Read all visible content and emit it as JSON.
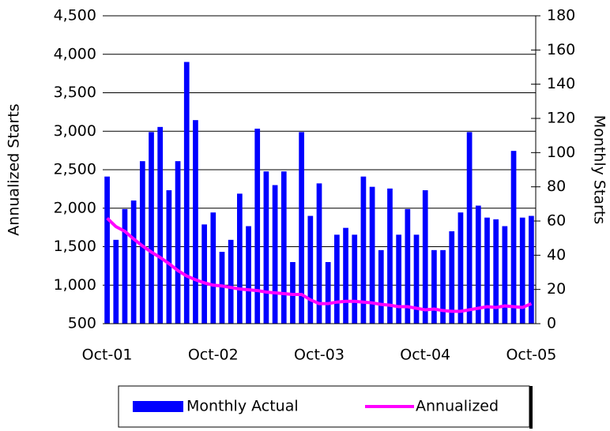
{
  "chart_data": {
    "type": "bar-line",
    "y_label": "Annualized Starts",
    "y2_label": "Monthly Starts",
    "categories": [
      "Oct-01",
      null,
      null,
      null,
      null,
      null,
      null,
      null,
      null,
      null,
      null,
      null,
      "Oct-02",
      null,
      null,
      null,
      null,
      null,
      null,
      null,
      null,
      null,
      null,
      null,
      "Oct-03",
      null,
      null,
      null,
      null,
      null,
      null,
      null,
      null,
      null,
      null,
      null,
      "Oct-04",
      null,
      null,
      null,
      null,
      null,
      null,
      null,
      null,
      null,
      null,
      null,
      "Oct-05"
    ],
    "series": [
      {
        "name": "Monthly Actual",
        "color": "#0000ff",
        "axis": "y2",
        "kind": "bar",
        "values": [
          86,
          49,
          67,
          72,
          95,
          112,
          115,
          78,
          95,
          153,
          119,
          58,
          65,
          42,
          49,
          76,
          57,
          114,
          89,
          81,
          89,
          36,
          112,
          63,
          82,
          36,
          52,
          56,
          52,
          86,
          80,
          43,
          79,
          52,
          67,
          52,
          78,
          43,
          43,
          54,
          65,
          112,
          69,
          62,
          61,
          57,
          101,
          62,
          63
        ]
      },
      {
        "name": "Annualized",
        "color": "#ff00ff",
        "kind": "line",
        "values": [
          1870,
          1760,
          1700,
          1600,
          1510,
          1430,
          1360,
          1280,
          1190,
          1120,
          1070,
          1030,
          1000,
          990,
          970,
          950,
          940,
          930,
          910,
          900,
          890,
          880,
          880,
          810,
          760,
          760,
          780,
          790,
          790,
          780,
          770,
          750,
          740,
          720,
          720,
          700,
          680,
          690,
          670,
          660,
          660,
          680,
          700,
          720,
          710,
          730,
          720,
          710,
          760
        ]
      }
    ],
    "ylim": [
      500,
      4500
    ],
    "yticks": [
      500,
      {
        "value": 1000,
        "label": "1,000"
      },
      {
        "value": 1500,
        "label": "1,500"
      },
      {
        "value": 2000,
        "label": "2,000"
      },
      {
        "value": 2500,
        "label": "2,500"
      },
      {
        "value": 3000,
        "label": "3,000"
      },
      {
        "value": 3500,
        "label": "3,500"
      },
      {
        "value": 4000,
        "label": "4,000"
      },
      {
        "value": 4500,
        "label": "4,500"
      }
    ],
    "y2lim": [
      0,
      180
    ],
    "y2ticks": [
      0,
      20,
      40,
      60,
      80,
      100,
      120,
      140,
      160,
      180
    ],
    "grid": true,
    "legend": "bottom"
  }
}
